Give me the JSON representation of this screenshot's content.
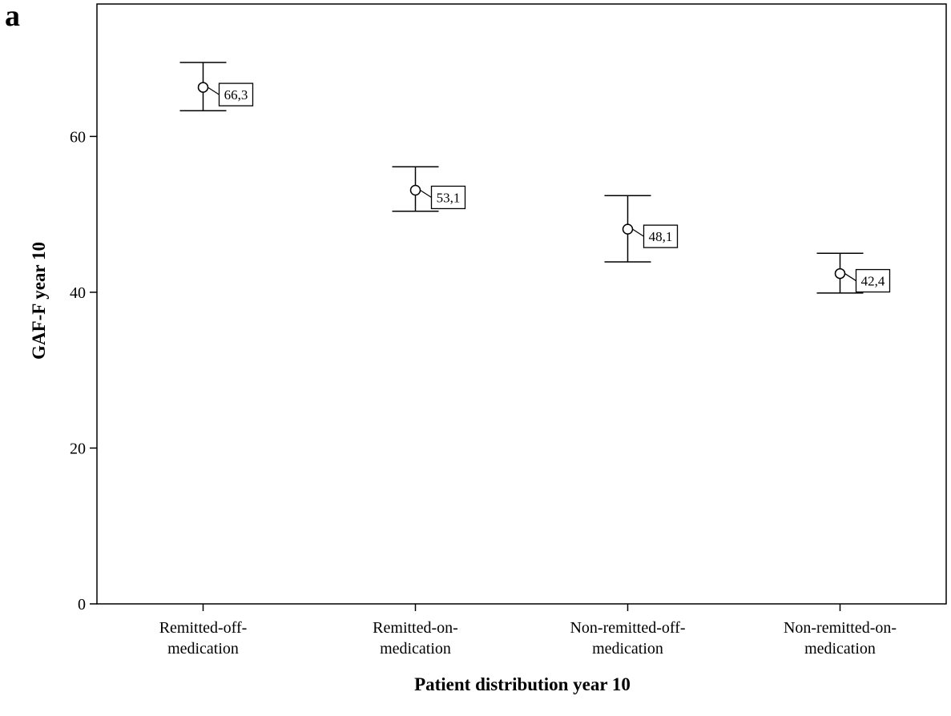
{
  "panel_label": "a",
  "chart_data": {
    "type": "scatter",
    "title": "",
    "xlabel": "Patient distribution year 10",
    "ylabel": "GAF-F year 10",
    "categories": [
      [
        "Remitted-off-",
        "medication"
      ],
      [
        "Remitted-on-",
        "medication"
      ],
      [
        "Non-remitted-off-",
        "medication"
      ],
      [
        "Non-remitted-on-",
        "medication"
      ]
    ],
    "values": [
      66.3,
      53.1,
      48.1,
      42.4
    ],
    "value_labels": [
      "66,3",
      "53,1",
      "48,1",
      "42,4"
    ],
    "error_low": [
      63.3,
      50.4,
      43.9,
      39.9
    ],
    "error_high": [
      69.5,
      56.1,
      52.4,
      45.0
    ],
    "ylim": [
      0,
      77
    ],
    "yticks": [
      0,
      20,
      40,
      60
    ],
    "grid": false,
    "legend": "none"
  }
}
